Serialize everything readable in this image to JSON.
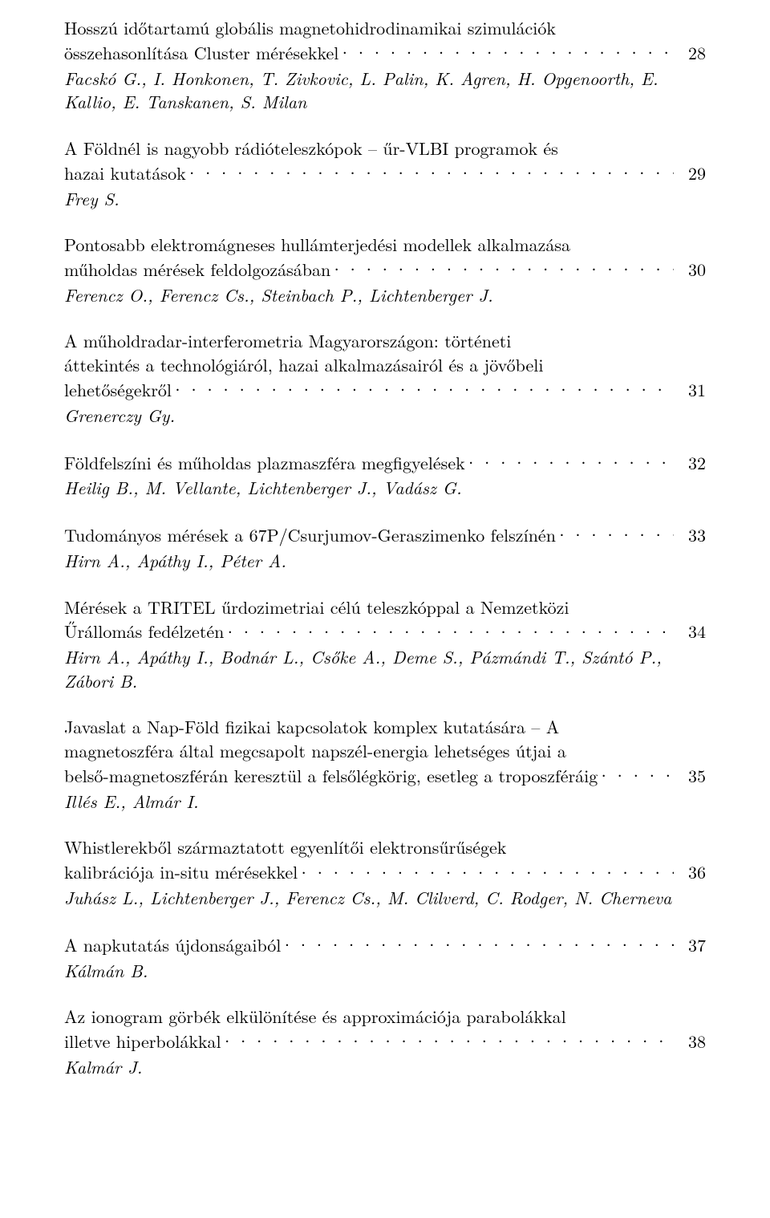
{
  "entries": [
    {
      "title_lines": [
        "Hosszú időtartamú globális magnetohidrodinamikai szimulációk"
      ],
      "last_line": "összehasonlítása Cluster mérésekkel",
      "page": "28",
      "authors": "Facskó G., I. Honkonen, T. Zivkovic, L. Palin, K. Agren, H. Opgenoorth, E. Kallio, E. Tanskanen, S. Milan"
    },
    {
      "title_lines": [
        "A Földnél is nagyobb rádióteleszkópok – űr-VLBI programok és"
      ],
      "last_line": "hazai kutatások",
      "page": "29",
      "authors": "Frey S."
    },
    {
      "title_lines": [
        "Pontosabb elektromágneses hullámterjedési modellek alkalmazása"
      ],
      "last_line": "műholdas mérések feldolgozásában",
      "page": "30",
      "authors": "Ferencz O., Ferencz Cs., Steinbach P., Lichtenberger J."
    },
    {
      "title_lines": [
        "A műholdradar-interferometria Magyarországon: történeti",
        "áttekintés a technológiáról, hazai alkalmazásairól és a jövőbeli"
      ],
      "last_line": "lehetőségekről",
      "page": "31",
      "authors": "Grenerczy Gy."
    },
    {
      "title_lines": [],
      "last_line": "Földfelszíni és műholdas plazmaszféra megfigyelések",
      "page": "32",
      "authors": "Heilig B., M. Vellante, Lichtenberger J., Vadász G."
    },
    {
      "title_lines": [],
      "last_line": "Tudományos mérések a 67P/Csurjumov-Geraszimenko felszínén",
      "page": "33",
      "authors": "Hirn A., Apáthy I., Péter A."
    },
    {
      "title_lines": [
        "Mérések a TRITEL űrdozimetriai célú teleszkóppal a Nemzetközi"
      ],
      "last_line": "Űrállomás fedélzetén",
      "page": "34",
      "authors": "Hirn A., Apáthy I., Bodnár L., Csőke A., Deme S., Pázmándi T., Szántó P., Zábori B."
    },
    {
      "title_lines": [
        "Javaslat a Nap-Föld fizikai kapcsolatok komplex kutatására – A",
        "magnetoszféra által megcsapolt napszél-energia lehetséges útjai a"
      ],
      "last_line": "belső-magnetoszférán keresztül a felsőlégkörig, esetleg a troposzféráig",
      "page": "35",
      "authors": "Illés E., Almár I."
    },
    {
      "title_lines": [
        "Whistlerekből származtatott egyenlítői elektronsűrűségek"
      ],
      "last_line": "kalibrációja in-situ mérésekkel",
      "page": "36",
      "authors": "Juhász L., Lichtenberger J., Ferencz Cs., M. Clilverd, C. Rodger, N. Cherneva"
    },
    {
      "title_lines": [],
      "last_line": "A napkutatás újdonságaiból",
      "page": "37",
      "authors": "Kálmán B."
    },
    {
      "title_lines": [
        "Az ionogram görbék elkülönítése és approximációja parabolákkal"
      ],
      "last_line": "illetve hiperbolákkal",
      "page": "38",
      "authors": "Kalmár J."
    }
  ]
}
